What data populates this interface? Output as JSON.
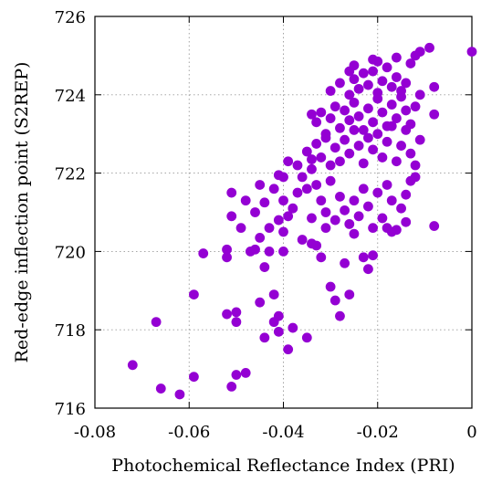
{
  "chart_data": {
    "type": "scatter",
    "xlabel": "Photochemical Reflectance Index (PRI)",
    "ylabel": "Red-edge inflection point (S2REP)",
    "xlim": [
      -0.08,
      0
    ],
    "ylim": [
      716,
      726
    ],
    "xticks": [
      -0.08,
      -0.06,
      -0.04,
      -0.02,
      0
    ],
    "xtick_labels": [
      "-0.08",
      "-0.06",
      "-0.04",
      "-0.02",
      "0"
    ],
    "yticks": [
      716,
      718,
      720,
      722,
      724,
      726
    ],
    "ytick_labels": [
      "716",
      "718",
      "720",
      "722",
      "724",
      "726"
    ],
    "grid": true,
    "marker_color": "#9400D3",
    "series": [
      {
        "points": [
          [
            -0.072,
            717.1
          ],
          [
            -0.066,
            716.5
          ],
          [
            -0.062,
            716.35
          ],
          [
            -0.059,
            716.8
          ],
          [
            -0.051,
            716.55
          ],
          [
            -0.05,
            716.85
          ],
          [
            -0.048,
            716.9
          ],
          [
            -0.067,
            718.2
          ],
          [
            -0.059,
            718.9
          ],
          [
            -0.052,
            718.4
          ],
          [
            -0.05,
            718.45
          ],
          [
            -0.05,
            718.2
          ],
          [
            -0.045,
            718.7
          ],
          [
            -0.042,
            718.2
          ],
          [
            -0.041,
            718.35
          ],
          [
            -0.041,
            717.95
          ],
          [
            -0.044,
            717.8
          ],
          [
            -0.039,
            717.5
          ],
          [
            -0.038,
            718.05
          ],
          [
            -0.035,
            717.8
          ],
          [
            -0.042,
            718.9
          ],
          [
            -0.057,
            719.95
          ],
          [
            -0.052,
            719.85
          ],
          [
            -0.052,
            720.05
          ],
          [
            -0.049,
            720.6
          ],
          [
            -0.047,
            720.0
          ],
          [
            -0.046,
            720.05
          ],
          [
            -0.045,
            720.35
          ],
          [
            -0.044,
            719.6
          ],
          [
            -0.043,
            720.0
          ],
          [
            -0.04,
            720.5
          ],
          [
            -0.04,
            720.0
          ],
          [
            -0.036,
            720.3
          ],
          [
            -0.034,
            720.2
          ],
          [
            -0.033,
            720.15
          ],
          [
            -0.032,
            719.85
          ],
          [
            -0.03,
            719.1
          ],
          [
            -0.029,
            718.75
          ],
          [
            -0.028,
            718.35
          ],
          [
            -0.027,
            719.7
          ],
          [
            -0.026,
            718.9
          ],
          [
            -0.025,
            720.45
          ],
          [
            -0.023,
            719.85
          ],
          [
            -0.022,
            719.55
          ],
          [
            -0.021,
            719.9
          ],
          [
            -0.018,
            720.6
          ],
          [
            -0.017,
            720.5
          ],
          [
            -0.014,
            720.75
          ],
          [
            -0.008,
            720.65
          ],
          [
            -0.051,
            720.9
          ],
          [
            -0.051,
            721.5
          ],
          [
            -0.048,
            721.3
          ],
          [
            -0.046,
            721.0
          ],
          [
            -0.045,
            721.7
          ],
          [
            -0.044,
            721.25
          ],
          [
            -0.043,
            720.6
          ],
          [
            -0.042,
            721.6
          ],
          [
            -0.041,
            721.95
          ],
          [
            -0.041,
            720.8
          ],
          [
            -0.04,
            721.9
          ],
          [
            -0.04,
            721.3
          ],
          [
            -0.039,
            720.9
          ],
          [
            -0.038,
            721.1
          ],
          [
            -0.037,
            721.5
          ],
          [
            -0.036,
            721.9
          ],
          [
            -0.035,
            721.6
          ],
          [
            -0.034,
            720.85
          ],
          [
            -0.034,
            722.1
          ],
          [
            -0.033,
            721.7
          ],
          [
            -0.032,
            721.3
          ],
          [
            -0.031,
            720.6
          ],
          [
            -0.031,
            721.0
          ],
          [
            -0.03,
            721.8
          ],
          [
            -0.029,
            720.8
          ],
          [
            -0.028,
            721.4
          ],
          [
            -0.027,
            721.05
          ],
          [
            -0.026,
            720.7
          ],
          [
            -0.025,
            721.3
          ],
          [
            -0.024,
            720.9
          ],
          [
            -0.023,
            721.6
          ],
          [
            -0.022,
            721.15
          ],
          [
            -0.021,
            720.6
          ],
          [
            -0.02,
            721.5
          ],
          [
            -0.019,
            720.85
          ],
          [
            -0.018,
            721.7
          ],
          [
            -0.017,
            721.3
          ],
          [
            -0.016,
            720.55
          ],
          [
            -0.015,
            721.1
          ],
          [
            -0.014,
            721.45
          ],
          [
            -0.013,
            721.8
          ],
          [
            -0.012,
            721.9
          ],
          [
            -0.039,
            722.3
          ],
          [
            -0.037,
            722.2
          ],
          [
            -0.035,
            722.55
          ],
          [
            -0.034,
            722.35
          ],
          [
            -0.033,
            722.75
          ],
          [
            -0.032,
            722.4
          ],
          [
            -0.031,
            722.9
          ],
          [
            -0.03,
            722.2
          ],
          [
            -0.029,
            722.65
          ],
          [
            -0.028,
            722.3
          ],
          [
            -0.027,
            722.85
          ],
          [
            -0.026,
            722.5
          ],
          [
            -0.025,
            723.1
          ],
          [
            -0.024,
            722.7
          ],
          [
            -0.023,
            722.25
          ],
          [
            -0.022,
            722.9
          ],
          [
            -0.021,
            722.6
          ],
          [
            -0.02,
            723.0
          ],
          [
            -0.019,
            722.4
          ],
          [
            -0.018,
            722.8
          ],
          [
            -0.017,
            723.2
          ],
          [
            -0.016,
            722.3
          ],
          [
            -0.015,
            722.7
          ],
          [
            -0.014,
            723.1
          ],
          [
            -0.013,
            722.5
          ],
          [
            -0.012,
            722.2
          ],
          [
            -0.011,
            722.85
          ],
          [
            -0.034,
            723.5
          ],
          [
            -0.033,
            723.3
          ],
          [
            -0.032,
            723.55
          ],
          [
            -0.031,
            723.0
          ],
          [
            -0.03,
            723.4
          ],
          [
            -0.029,
            723.7
          ],
          [
            -0.028,
            723.15
          ],
          [
            -0.027,
            723.6
          ],
          [
            -0.026,
            723.35
          ],
          [
            -0.025,
            723.8
          ],
          [
            -0.024,
            723.45
          ],
          [
            -0.023,
            723.1
          ],
          [
            -0.022,
            723.65
          ],
          [
            -0.021,
            723.3
          ],
          [
            -0.02,
            723.9
          ],
          [
            -0.019,
            723.55
          ],
          [
            -0.018,
            723.2
          ],
          [
            -0.017,
            723.75
          ],
          [
            -0.016,
            723.4
          ],
          [
            -0.015,
            723.95
          ],
          [
            -0.014,
            723.6
          ],
          [
            -0.013,
            723.25
          ],
          [
            -0.012,
            723.7
          ],
          [
            -0.008,
            723.5
          ],
          [
            -0.03,
            724.1
          ],
          [
            -0.028,
            724.3
          ],
          [
            -0.026,
            724.0
          ],
          [
            -0.025,
            724.4
          ],
          [
            -0.024,
            724.15
          ],
          [
            -0.023,
            724.55
          ],
          [
            -0.022,
            724.25
          ],
          [
            -0.021,
            724.6
          ],
          [
            -0.02,
            724.05
          ],
          [
            -0.019,
            724.35
          ],
          [
            -0.018,
            724.7
          ],
          [
            -0.017,
            724.2
          ],
          [
            -0.016,
            724.45
          ],
          [
            -0.015,
            724.1
          ],
          [
            -0.014,
            724.3
          ],
          [
            -0.013,
            724.8
          ],
          [
            -0.011,
            724.0
          ],
          [
            -0.008,
            724.2
          ],
          [
            -0.026,
            724.6
          ],
          [
            -0.025,
            724.75
          ],
          [
            -0.021,
            724.9
          ],
          [
            -0.02,
            724.85
          ],
          [
            -0.016,
            724.95
          ],
          [
            -0.012,
            725.0
          ],
          [
            -0.011,
            725.1
          ],
          [
            -0.009,
            725.2
          ],
          [
            -0.0,
            725.1
          ]
        ]
      }
    ]
  }
}
